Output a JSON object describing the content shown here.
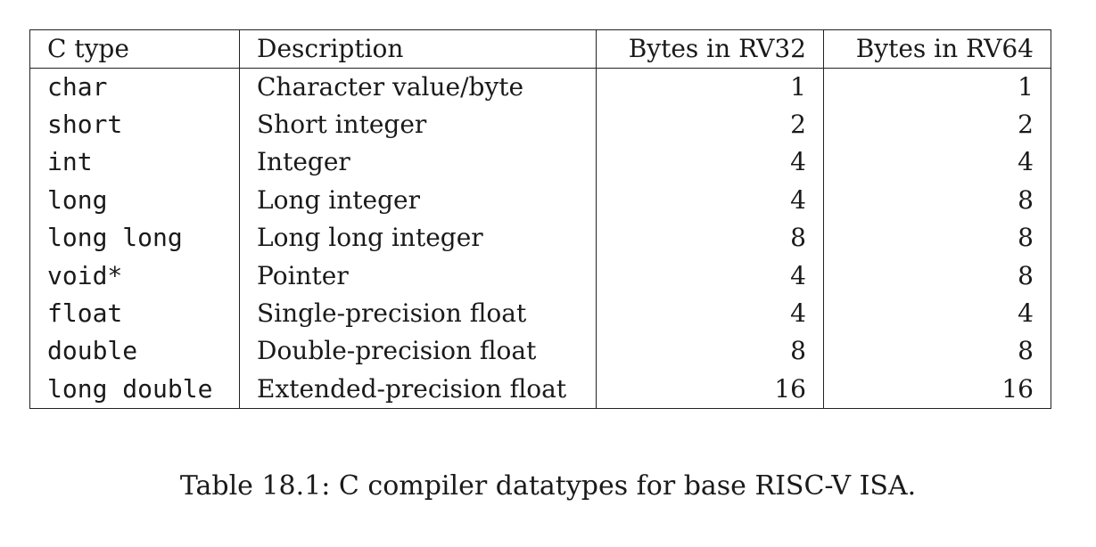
{
  "table": {
    "headers": [
      "C type",
      "Description",
      "Bytes in RV32",
      "Bytes in RV64"
    ],
    "rows": [
      {
        "ctype": "char",
        "description": "Character value/byte",
        "rv32": "1",
        "rv64": "1"
      },
      {
        "ctype": "short",
        "description": "Short integer",
        "rv32": "2",
        "rv64": "2"
      },
      {
        "ctype": "int",
        "description": "Integer",
        "rv32": "4",
        "rv64": "4"
      },
      {
        "ctype": "long",
        "description": "Long integer",
        "rv32": "4",
        "rv64": "8"
      },
      {
        "ctype": "long long",
        "description": "Long long integer",
        "rv32": "8",
        "rv64": "8"
      },
      {
        "ctype": "void*",
        "description": "Pointer",
        "rv32": "4",
        "rv64": "8"
      },
      {
        "ctype": "float",
        "description": "Single-precision float",
        "rv32": "4",
        "rv64": "4"
      },
      {
        "ctype": "double",
        "description": "Double-precision float",
        "rv32": "8",
        "rv64": "8"
      },
      {
        "ctype": "long double",
        "description": "Extended-precision float",
        "rv32": "16",
        "rv64": "16"
      }
    ]
  },
  "caption": "Table 18.1: C compiler datatypes for base RISC-V ISA."
}
